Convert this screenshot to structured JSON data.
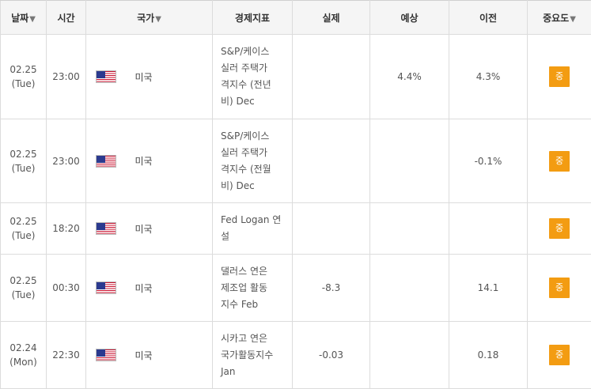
{
  "headers": {
    "date": "날짜",
    "time": "시간",
    "country": "국가",
    "indicator": "경제지표",
    "actual": "실제",
    "forecast": "예상",
    "previous": "이전",
    "importance": "중요도",
    "sort_arrow": "▼"
  },
  "rows": [
    {
      "date": "02.25",
      "day": "(Tue)",
      "time": "23:00",
      "flag": "us-flag-icon",
      "country": "미국",
      "indicator": [
        "S&P/케이스",
        "실러 주택가",
        "격지수 (전년",
        "비) Dec"
      ],
      "actual": "",
      "forecast": "4.4%",
      "previous": "4.3%",
      "importance": "중"
    },
    {
      "date": "02.25",
      "day": "(Tue)",
      "time": "23:00",
      "flag": "us-flag-icon",
      "country": "미국",
      "indicator": [
        "S&P/케이스",
        "실러 주택가",
        "격지수 (전월",
        "비) Dec"
      ],
      "actual": "",
      "forecast": "",
      "previous": "-0.1%",
      "importance": "중"
    },
    {
      "date": "02.25",
      "day": "(Tue)",
      "time": "18:20",
      "flag": "us-flag-icon",
      "country": "미국",
      "indicator": [
        "Fed Logan 연",
        "설"
      ],
      "actual": "",
      "forecast": "",
      "previous": "",
      "importance": "중"
    },
    {
      "date": "02.25",
      "day": "(Tue)",
      "time": "00:30",
      "flag": "us-flag-icon",
      "country": "미국",
      "indicator": [
        "댈러스 연은",
        "제조업 활동",
        "지수 Feb"
      ],
      "actual": "-8.3",
      "forecast": "",
      "previous": "14.1",
      "importance": "중"
    },
    {
      "date": "02.24",
      "day": "(Mon)",
      "time": "22:30",
      "flag": "us-flag-icon",
      "country": "미국",
      "indicator": [
        "시카고 연은",
        "국가활동지수",
        "Jan"
      ],
      "actual": "-0.03",
      "forecast": "",
      "previous": "0.18",
      "importance": "중"
    }
  ]
}
